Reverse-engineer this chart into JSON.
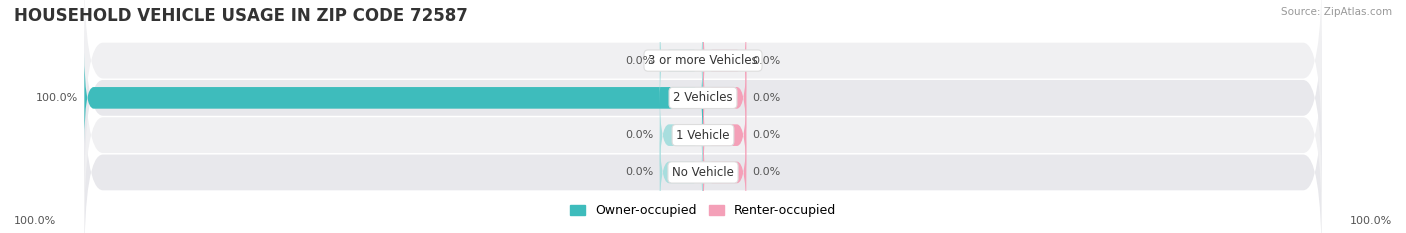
{
  "title": "HOUSEHOLD VEHICLE USAGE IN ZIP CODE 72587",
  "source": "Source: ZipAtlas.com",
  "categories": [
    "No Vehicle",
    "1 Vehicle",
    "2 Vehicles",
    "3 or more Vehicles"
  ],
  "owner_values": [
    0.0,
    0.0,
    100.0,
    0.0
  ],
  "renter_values": [
    0.0,
    0.0,
    0.0,
    0.0
  ],
  "owner_color": "#3ebcbc",
  "owner_color_light": "#a8dede",
  "renter_color": "#f4a0b8",
  "row_bg_color_even": "#f0f0f2",
  "row_bg_color_odd": "#e8e8ec",
  "bar_height": 0.58,
  "title_fontsize": 12,
  "label_fontsize": 8,
  "legend_fontsize": 9,
  "source_fontsize": 7.5,
  "axis_label_left": "100.0%",
  "axis_label_right": "100.0%",
  "max_val": 100.0,
  "stub_val": 7.0
}
